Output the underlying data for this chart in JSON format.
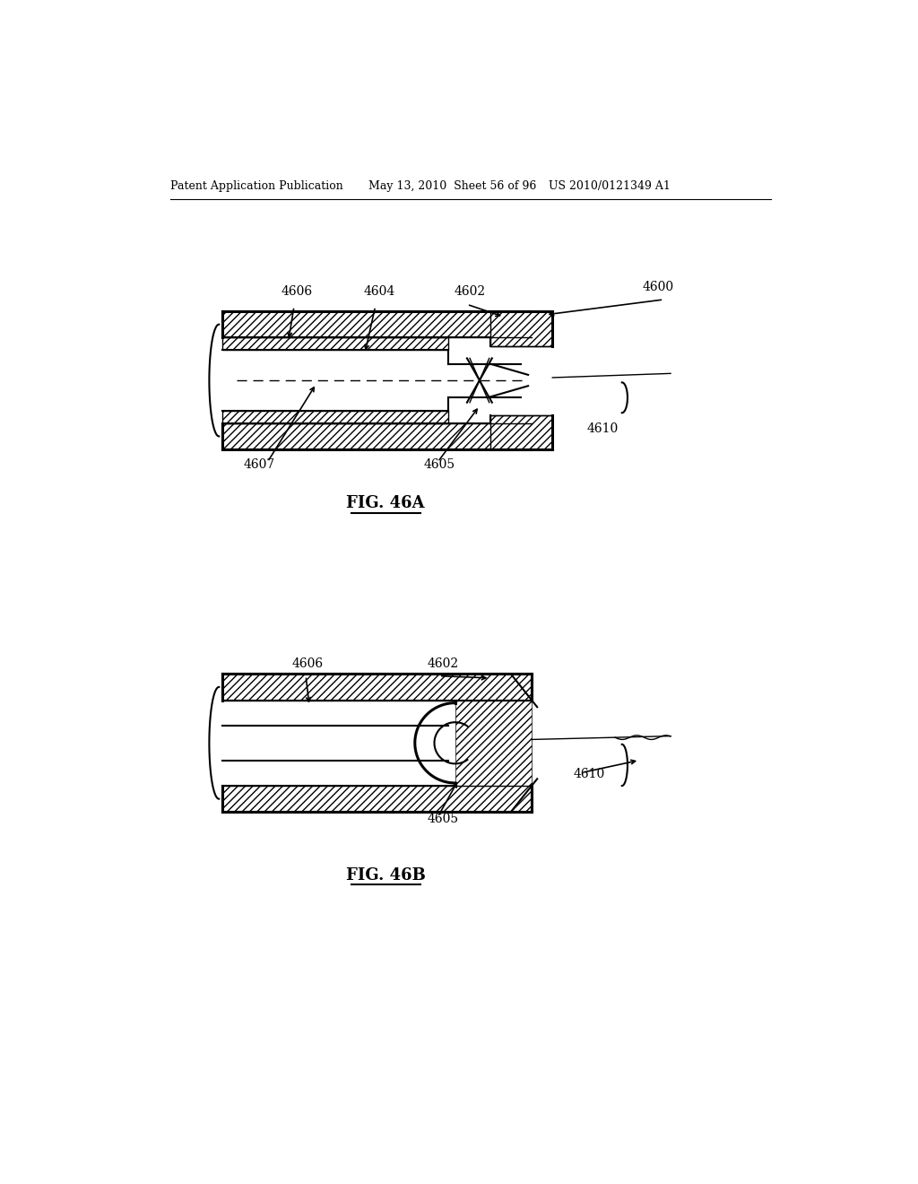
{
  "bg_color": "#ffffff",
  "text_color": "#000000",
  "header_left": "Patent Application Publication",
  "header_center": "May 13, 2010  Sheet 56 of 96",
  "header_right": "US 2010/0121349 A1",
  "fig_a_title": "FIG. 46A",
  "fig_b_title": "FIG. 46B",
  "line_color": "#000000"
}
